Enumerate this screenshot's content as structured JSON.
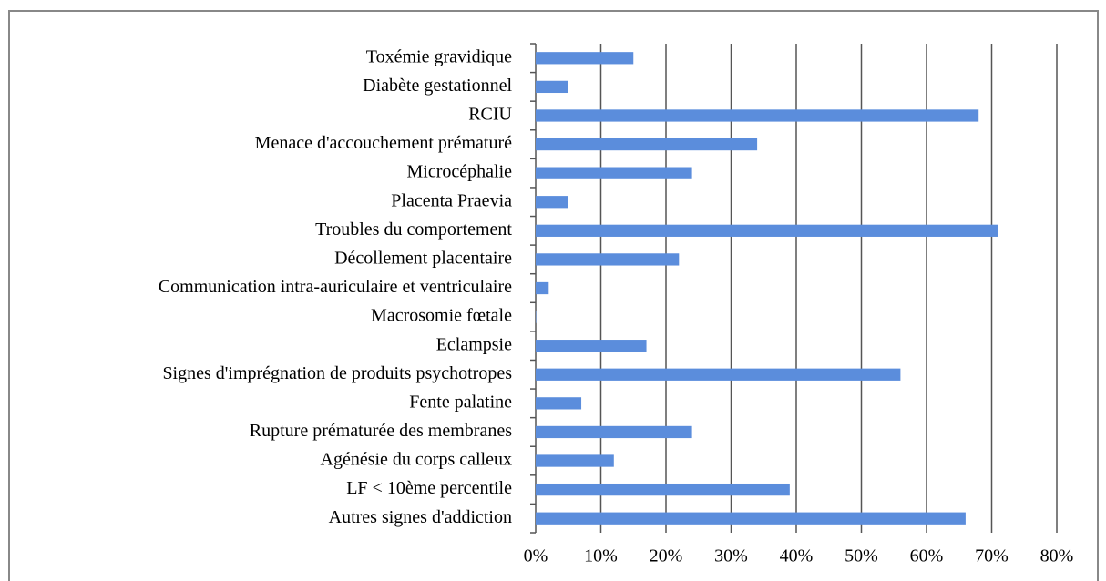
{
  "chart_data": {
    "type": "bar",
    "orientation": "horizontal",
    "categories": [
      "Toxémie gravidique",
      "Diabète gestationnel",
      "RCIU",
      "Menace d'accouchement prématuré",
      "Microcéphalie",
      "Placenta Praevia",
      "Troubles du comportement",
      "Décollement placentaire",
      "Communication intra-auriculaire et ventriculaire",
      "Macrosomie fœtale",
      "Eclampsie",
      "Signes d'imprégnation de produits psychotropes",
      "Fente palatine",
      "Rupture prématurée des membranes",
      "Agénésie du corps calleux",
      "LF < 10ème percentile",
      "Autres signes d'addiction"
    ],
    "values": [
      15,
      5,
      68,
      34,
      24,
      5,
      71,
      22,
      2,
      0,
      17,
      56,
      7,
      24,
      12,
      39,
      66
    ],
    "color": "#5b8ddc",
    "xlim": [
      0,
      80
    ],
    "xticks": [
      {
        "value": 0,
        "label": "0%"
      },
      {
        "value": 10,
        "label": "10%"
      },
      {
        "value": 20,
        "label": "20%"
      },
      {
        "value": 30,
        "label": "30%"
      },
      {
        "value": 40,
        "label": "40%"
      },
      {
        "value": 50,
        "label": "50%"
      },
      {
        "value": 60,
        "label": "60%"
      },
      {
        "value": 70,
        "label": "70%"
      },
      {
        "value": 80,
        "label": "80%"
      }
    ],
    "grid": true
  }
}
